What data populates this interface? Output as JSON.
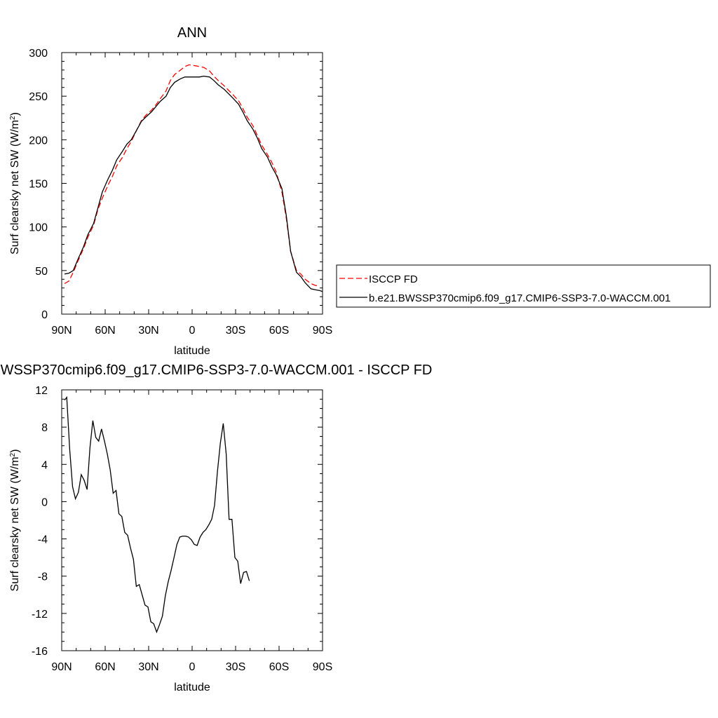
{
  "chart_data": [
    {
      "type": "line",
      "title": "ANN",
      "xlabel": "latitude",
      "ylabel": "Surf clearsky net SW (W/m²)",
      "ylabel_main": "Surf clearsky net SW (W/m",
      "ylabel_sup": "2",
      "ylabel_tail": ")",
      "xlim": [
        90,
        -90
      ],
      "ylim": [
        0,
        300
      ],
      "x_ticks": [
        {
          "value": 90,
          "label": "90N"
        },
        {
          "value": 60,
          "label": "60N"
        },
        {
          "value": 30,
          "label": "30N"
        },
        {
          "value": 0,
          "label": "0"
        },
        {
          "value": -30,
          "label": "30S"
        },
        {
          "value": -60,
          "label": "60S"
        },
        {
          "value": -90,
          "label": "90S"
        }
      ],
      "y_ticks": [
        {
          "value": 0,
          "label": "0"
        },
        {
          "value": 50,
          "label": "50"
        },
        {
          "value": 100,
          "label": "100"
        },
        {
          "value": 150,
          "label": "150"
        },
        {
          "value": 200,
          "label": "200"
        },
        {
          "value": 250,
          "label": "250"
        },
        {
          "value": 300,
          "label": "300"
        }
      ],
      "legend_position": "right",
      "series": [
        {
          "name": "ISCCP FD",
          "color": "#ff0000",
          "dash": "dashed",
          "points": [
            [
              88,
              35
            ],
            [
              85,
              38
            ],
            [
              82,
              48
            ],
            [
              79,
              60
            ],
            [
              75,
              75
            ],
            [
              72,
              88
            ],
            [
              68,
              102
            ],
            [
              65,
              120
            ],
            [
              62,
              133
            ],
            [
              58,
              148
            ],
            [
              55,
              158
            ],
            [
              52,
              170
            ],
            [
              48,
              180
            ],
            [
              45,
              190
            ],
            [
              42,
              198
            ],
            [
              38,
              212
            ],
            [
              35,
              222
            ],
            [
              32,
              228
            ],
            [
              28,
              234
            ],
            [
              25,
              240
            ],
            [
              22,
              247
            ],
            [
              18,
              256
            ],
            [
              15,
              268
            ],
            [
              12,
              275
            ],
            [
              8,
              280
            ],
            [
              5,
              284
            ],
            [
              2,
              286
            ],
            [
              -2,
              285
            ],
            [
              -5,
              284
            ],
            [
              -8,
              283
            ],
            [
              -12,
              279
            ],
            [
              -15,
              273
            ],
            [
              -18,
              268
            ],
            [
              -22,
              262
            ],
            [
              -25,
              257
            ],
            [
              -28,
              252
            ],
            [
              -32,
              245
            ],
            [
              -35,
              236
            ],
            [
              -38,
              226
            ],
            [
              -42,
              216
            ],
            [
              -45,
              205
            ],
            [
              -48,
              194
            ],
            [
              -52,
              183
            ],
            [
              -55,
              174
            ],
            [
              -58,
              163
            ],
            [
              -62,
              140
            ],
            [
              -65,
              110
            ],
            [
              -68,
              72
            ],
            [
              -72,
              50
            ],
            [
              -75,
              46
            ],
            [
              -78,
              40
            ],
            [
              -82,
              35
            ],
            [
              -85,
              33
            ],
            [
              -88,
              32
            ]
          ]
        },
        {
          "name": "b.e21.BWSSP370cmip6.f09_g17.CMIP6-SSP3-7.0-WACCM.001",
          "color": "#000000",
          "dash": "solid",
          "points": [
            [
              88,
              46
            ],
            [
              85,
              47
            ],
            [
              82,
              50
            ],
            [
              79,
              62
            ],
            [
              75,
              77
            ],
            [
              72,
              91
            ],
            [
              68,
              104
            ],
            [
              65,
              122
            ],
            [
              62,
              140
            ],
            [
              58,
              155
            ],
            [
              55,
              165
            ],
            [
              52,
              177
            ],
            [
              48,
              187
            ],
            [
              45,
              195
            ],
            [
              42,
              200
            ],
            [
              38,
              212
            ],
            [
              35,
              221
            ],
            [
              32,
              226
            ],
            [
              28,
              232
            ],
            [
              25,
              238
            ],
            [
              22,
              244
            ],
            [
              18,
              250
            ],
            [
              15,
              260
            ],
            [
              12,
              266
            ],
            [
              8,
              270
            ],
            [
              5,
              272
            ],
            [
              2,
              272
            ],
            [
              -2,
              272
            ],
            [
              -5,
              272
            ],
            [
              -8,
              273
            ],
            [
              -12,
              272
            ],
            [
              -15,
              268
            ],
            [
              -18,
              263
            ],
            [
              -22,
              258
            ],
            [
              -25,
              253
            ],
            [
              -28,
              248
            ],
            [
              -32,
              241
            ],
            [
              -35,
              232
            ],
            [
              -38,
              222
            ],
            [
              -42,
              212
            ],
            [
              -45,
              202
            ],
            [
              -48,
              190
            ],
            [
              -52,
              180
            ],
            [
              -55,
              169
            ],
            [
              -58,
              160
            ],
            [
              -62,
              144
            ],
            [
              -65,
              113
            ],
            [
              -68,
              72
            ],
            [
              -72,
              48
            ],
            [
              -75,
              43
            ],
            [
              -78,
              36
            ],
            [
              -82,
              29
            ],
            [
              -85,
              28
            ],
            [
              -88,
              27
            ],
            [
              -90,
              26
            ]
          ]
        }
      ]
    },
    {
      "type": "line",
      "title": "b.e21.BWSSP370cmip6.f09_g17.CMIP6-SSP3-7.0-WACCM.001 - ISCCP FD",
      "xlabel": "latitude",
      "ylabel": "Surf clearsky net SW (W/m²)",
      "ylabel_main": "Surf clearsky net SW (W/m",
      "ylabel_sup": "2",
      "ylabel_tail": ")",
      "xlim": [
        90,
        -90
      ],
      "ylim": [
        -16,
        12
      ],
      "x_ticks": [
        {
          "value": 90,
          "label": "90N"
        },
        {
          "value": 60,
          "label": "60N"
        },
        {
          "value": 30,
          "label": "30N"
        },
        {
          "value": 0,
          "label": "0"
        },
        {
          "value": -30,
          "label": "30S"
        },
        {
          "value": -60,
          "label": "60S"
        },
        {
          "value": -90,
          "label": "90S"
        }
      ],
      "y_ticks": [
        {
          "value": 12,
          "label": "12"
        },
        {
          "value": 8,
          "label": "8"
        },
        {
          "value": 4,
          "label": "4"
        },
        {
          "value": 0,
          "label": "0"
        },
        {
          "value": -4,
          "label": "-4"
        },
        {
          "value": -8,
          "label": "-8"
        },
        {
          "value": -12,
          "label": "-12"
        },
        {
          "value": -16,
          "label": "-16"
        }
      ],
      "series": [
        {
          "color": "#000000",
          "dash": "solid",
          "points": [
            [
              88,
              10.9
            ],
            [
              86.5,
              11.2
            ],
            [
              84.5,
              5.6
            ],
            [
              82.5,
              1.6
            ],
            [
              80.5,
              0.3
            ],
            [
              78.5,
              1.0
            ],
            [
              76.5,
              2.9
            ],
            [
              74.5,
              2.3
            ],
            [
              72.5,
              1.3
            ],
            [
              70.5,
              5.8
            ],
            [
              68.5,
              8.7
            ],
            [
              66.5,
              6.9
            ],
            [
              64.5,
              6.5
            ],
            [
              62.5,
              7.8
            ],
            [
              60.5,
              6.5
            ],
            [
              58.5,
              5.1
            ],
            [
              56.5,
              3.4
            ],
            [
              54.5,
              0.9
            ],
            [
              52.5,
              1.2
            ],
            [
              50.5,
              -1.3
            ],
            [
              48.5,
              -1.6
            ],
            [
              46.5,
              -3.3
            ],
            [
              44.5,
              -3.6
            ],
            [
              42.5,
              -5.0
            ],
            [
              40.5,
              -6.2
            ],
            [
              38.5,
              -9.1
            ],
            [
              36.5,
              -8.9
            ],
            [
              34.5,
              -10.0
            ],
            [
              32.5,
              -11.1
            ],
            [
              30.5,
              -11.3
            ],
            [
              28.5,
              -12.9
            ],
            [
              26.5,
              -13.1
            ],
            [
              24.5,
              -14.0
            ],
            [
              22.5,
              -13.2
            ],
            [
              20.5,
              -12.3
            ],
            [
              18.5,
              -10.1
            ],
            [
              16.5,
              -8.6
            ],
            [
              14.5,
              -7.4
            ],
            [
              12.5,
              -6.0
            ],
            [
              10.5,
              -4.6
            ],
            [
              8.5,
              -3.8
            ],
            [
              6.5,
              -3.7
            ],
            [
              4.5,
              -3.7
            ],
            [
              2.5,
              -3.8
            ],
            [
              0.5,
              -4.1
            ],
            [
              -1.5,
              -4.6
            ],
            [
              -3.5,
              -4.7
            ],
            [
              -5.5,
              -3.8
            ],
            [
              -7.5,
              -3.3
            ],
            [
              -9.5,
              -3.0
            ],
            [
              -11.5,
              -2.5
            ],
            [
              -13.5,
              -1.9
            ],
            [
              -15.5,
              -0.4
            ],
            [
              -17.5,
              3.3
            ],
            [
              -19.5,
              6.3
            ],
            [
              -21.5,
              8.4
            ],
            [
              -23.5,
              5.1
            ],
            [
              -25.5,
              -1.9
            ],
            [
              -27.5,
              -1.9
            ],
            [
              -29.5,
              -6.0
            ],
            [
              -31.5,
              -6.4
            ],
            [
              -33.5,
              -8.8
            ],
            [
              -35.5,
              -7.6
            ],
            [
              -37.5,
              -7.5
            ],
            [
              -39.5,
              -8.5
            ]
          ]
        }
      ]
    }
  ]
}
